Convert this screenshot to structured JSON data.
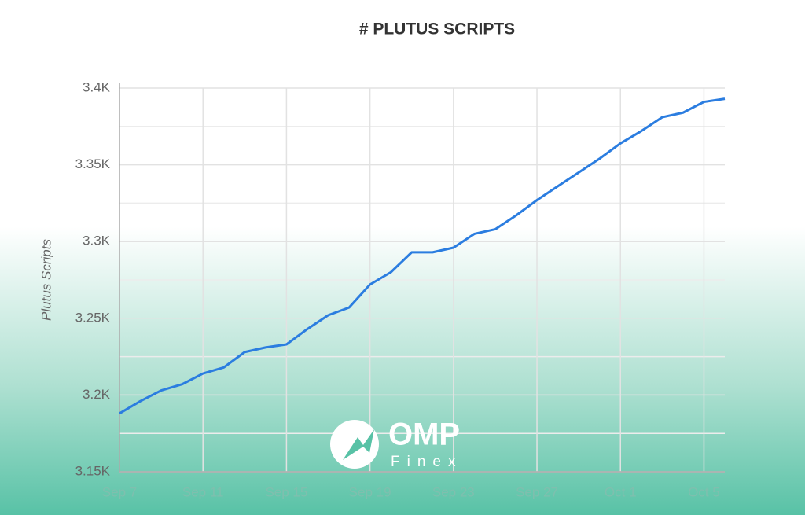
{
  "chart_data": {
    "type": "line",
    "title": "# PLUTUS SCRIPTS",
    "y_label": "Plutus Scripts",
    "categories": [
      "Sep 7",
      null,
      null,
      null,
      "Sep 11",
      null,
      null,
      null,
      "Sep 15",
      null,
      null,
      null,
      "Sep 19",
      null,
      null,
      null,
      "Sep 23",
      null,
      null,
      null,
      "Sep 27",
      null,
      null,
      null,
      "Oct 1",
      null,
      null,
      null,
      "Oct 5",
      null
    ],
    "series": [
      {
        "name": "Plutus Scripts",
        "color": "#2b7de0",
        "values": [
          3188,
          3196,
          3203,
          3207,
          3214,
          3218,
          3228,
          3231,
          3233,
          3243,
          3252,
          3257,
          3272,
          3280,
          3293,
          3293,
          3296,
          3305,
          3308,
          3317,
          3327,
          3336,
          3345,
          3354,
          3364,
          3372,
          3381,
          3384,
          3391,
          3393
        ]
      }
    ],
    "ylim": [
      3150,
      3400
    ],
    "yticks": [
      {
        "value": 3150,
        "label": "3.15K"
      },
      {
        "value": 3200,
        "label": "3.2K"
      },
      {
        "value": 3250,
        "label": "3.25K"
      },
      {
        "value": 3300,
        "label": "3.3K"
      },
      {
        "value": 3350,
        "label": "3.35K"
      },
      {
        "value": 3400,
        "label": "3.4K"
      }
    ],
    "grid": true
  },
  "watermark": {
    "name": "OMP",
    "sub": "Finex"
  }
}
